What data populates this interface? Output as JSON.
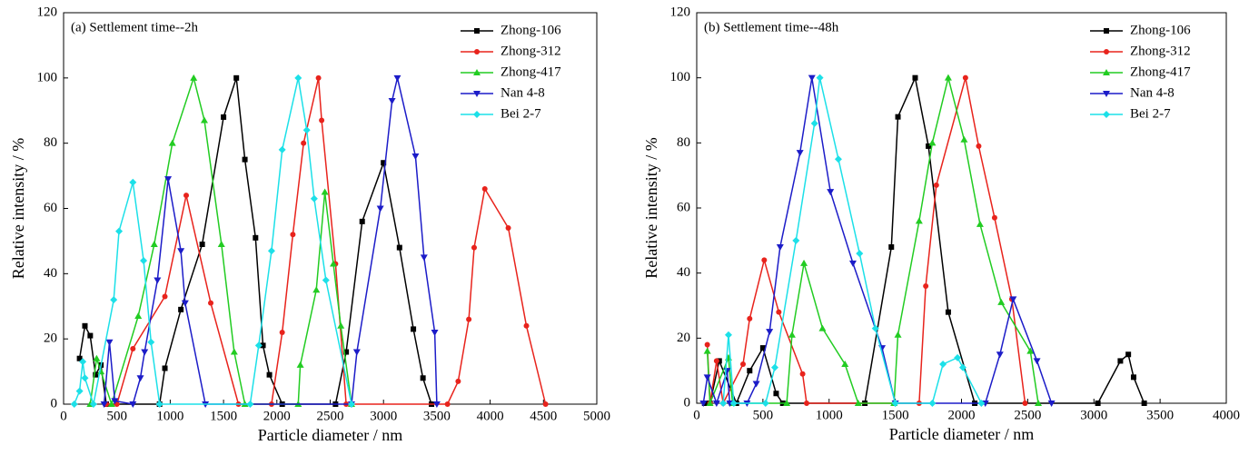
{
  "chart_data": [
    {
      "type": "line",
      "annotation": "(a) Settlement time--2h",
      "x_label": "Particle diameter / nm",
      "y_label": "Relative intensity / %",
      "xlim": [
        0,
        5000
      ],
      "xticks": [
        0,
        500,
        1000,
        1500,
        2000,
        2500,
        3000,
        3500,
        4000,
        4500,
        5000
      ],
      "ylim": [
        0,
        120
      ],
      "yticks": [
        0,
        20,
        40,
        60,
        80,
        100,
        120
      ],
      "legend": "upper right",
      "series": [
        {
          "name": "Zhong-106",
          "color": "#000000",
          "marker": "square",
          "x": [
            150,
            200,
            250,
            300,
            350,
            400,
            900,
            950,
            1100,
            1300,
            1500,
            1620,
            1700,
            1800,
            1870,
            1930,
            2050,
            2550,
            2650,
            2800,
            3000,
            3150,
            3280,
            3370,
            3450
          ],
          "values": [
            14,
            24,
            21,
            9,
            12,
            0,
            0,
            11,
            29,
            49,
            88,
            100,
            75,
            51,
            18,
            9,
            0,
            0,
            16,
            56,
            74,
            48,
            23,
            8,
            0
          ]
        },
        {
          "name": "Zhong-312",
          "color": "#e8231c",
          "marker": "circle",
          "x": [
            400,
            500,
            650,
            950,
            1150,
            1380,
            1640,
            1950,
            2050,
            2150,
            2250,
            2390,
            2420,
            2550,
            2650,
            3600,
            3700,
            3800,
            3850,
            3950,
            4170,
            4340,
            4520
          ],
          "values": [
            0,
            0,
            17,
            33,
            64,
            31,
            0,
            0,
            22,
            52,
            80,
            100,
            87,
            43,
            0,
            0,
            7,
            26,
            48,
            66,
            54,
            24,
            0
          ]
        },
        {
          "name": "Zhong-417",
          "color": "#22cc22",
          "marker": "triangle-up",
          "x": [
            250,
            310,
            350,
            450,
            700,
            850,
            1020,
            1220,
            1320,
            1480,
            1600,
            1700,
            2200,
            2220,
            2370,
            2450,
            2530,
            2600,
            2700
          ],
          "values": [
            0,
            14,
            10,
            0,
            27,
            49,
            80,
            100,
            87,
            49,
            16,
            0,
            0,
            12,
            35,
            65,
            43,
            24,
            0
          ]
        },
        {
          "name": "Nan 4-8",
          "color": "#1c1cc8",
          "marker": "triangle-down",
          "x": [
            380,
            430,
            480,
            650,
            720,
            760,
            880,
            980,
            1100,
            1140,
            1330,
            2700,
            2750,
            2970,
            3080,
            3130,
            3300,
            3380,
            3480,
            3500
          ],
          "values": [
            0,
            19,
            1,
            0,
            8,
            16,
            38,
            69,
            47,
            31,
            0,
            0,
            16,
            60,
            93,
            100,
            76,
            45,
            22,
            0
          ]
        },
        {
          "name": "Bei 2-7",
          "color": "#1ce0e8",
          "marker": "diamond",
          "x": [
            100,
            150,
            180,
            200,
            280,
            470,
            520,
            650,
            750,
            820,
            900,
            1750,
            1830,
            1950,
            2050,
            2200,
            2280,
            2350,
            2460,
            2700
          ],
          "values": [
            0,
            4,
            13,
            8,
            0,
            32,
            53,
            68,
            44,
            19,
            0,
            0,
            18,
            47,
            78,
            100,
            84,
            63,
            38,
            0
          ]
        }
      ]
    },
    {
      "type": "line",
      "annotation": "(b) Settlement time--48h",
      "x_label": "Particle diameter / nm",
      "y_label": "Relative intensity / %",
      "xlim": [
        0,
        4000
      ],
      "xticks": [
        0,
        500,
        1000,
        1500,
        2000,
        2500,
        3000,
        3500,
        4000
      ],
      "ylim": [
        0,
        120
      ],
      "yticks": [
        0,
        20,
        40,
        60,
        80,
        100,
        120
      ],
      "legend": "upper right",
      "series": [
        {
          "name": "Zhong-106",
          "color": "#000000",
          "marker": "square",
          "x": [
            60,
            100,
            170,
            300,
            400,
            500,
            600,
            650,
            1270,
            1470,
            1520,
            1650,
            1750,
            1900,
            2100,
            3030,
            3200,
            3260,
            3300,
            3380
          ],
          "values": [
            0,
            0,
            13,
            0,
            10,
            17,
            3,
            0,
            0,
            48,
            88,
            100,
            79,
            28,
            0,
            0,
            13,
            15,
            8,
            0
          ]
        },
        {
          "name": "Zhong-312",
          "color": "#e8231c",
          "marker": "circle",
          "x": [
            80,
            100,
            150,
            200,
            350,
            400,
            510,
            620,
            800,
            830,
            1680,
            1730,
            1810,
            2030,
            2130,
            2250,
            2380,
            2480
          ],
          "values": [
            18,
            0,
            13,
            0,
            12,
            26,
            44,
            28,
            9,
            0,
            0,
            36,
            67,
            100,
            79,
            57,
            32,
            0
          ]
        },
        {
          "name": "Zhong-417",
          "color": "#22cc22",
          "marker": "triangle-up",
          "x": [
            80,
            100,
            240,
            270,
            680,
            720,
            810,
            950,
            1120,
            1220,
            1490,
            1520,
            1680,
            1780,
            1900,
            2020,
            2140,
            2300,
            2520,
            2580
          ],
          "values": [
            16,
            0,
            14,
            0,
            0,
            21,
            43,
            23,
            12,
            0,
            0,
            21,
            56,
            80,
            100,
            81,
            55,
            31,
            16,
            0
          ]
        },
        {
          "name": "Nan 4-8",
          "color": "#1c1cc8",
          "marker": "triangle-down",
          "x": [
            50,
            80,
            150,
            230,
            250,
            380,
            450,
            550,
            630,
            780,
            870,
            1010,
            1180,
            1400,
            1500,
            2180,
            2290,
            2390,
            2570,
            2680
          ],
          "values": [
            0,
            8,
            0,
            10,
            0,
            0,
            6,
            22,
            48,
            77,
            100,
            65,
            43,
            17,
            0,
            0,
            15,
            32,
            13,
            0
          ]
        },
        {
          "name": "Bei 2-7",
          "color": "#1ce0e8",
          "marker": "diamond",
          "x": [
            200,
            240,
            280,
            520,
            590,
            750,
            890,
            930,
            1070,
            1230,
            1350,
            1500,
            1780,
            1860,
            1970,
            2010,
            2150
          ],
          "values": [
            0,
            21,
            0,
            0,
            11,
            50,
            86,
            100,
            75,
            46,
            23,
            0,
            0,
            12,
            14,
            11,
            0
          ]
        }
      ]
    }
  ]
}
